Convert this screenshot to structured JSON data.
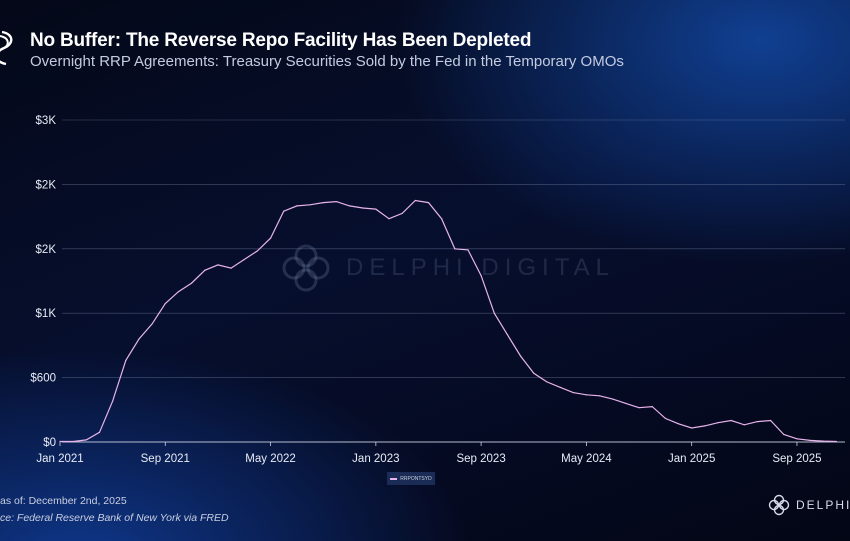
{
  "header": {
    "title": "No Buffer: The Reverse Repo Facility Has Been Depleted",
    "subtitle": "Overnight RRP Agreements: Treasury Securities Sold by the Fed in the Temporary OMOs"
  },
  "footer": {
    "as_of": "as of: December 2nd, 2025",
    "source": "ce: Federal Reserve Bank of New York via FRED",
    "brand": "DELPHI DI",
    "watermark": "DELPHI DIGITAL"
  },
  "colors": {
    "line": "#e7b3ea",
    "grid": "#7f8aa8",
    "text": "#e8ebf5"
  },
  "chart_data": {
    "type": "line",
    "title": "No Buffer: The Reverse Repo Facility Has Been Depleted",
    "subtitle": "Overnight RRP Agreements: Treasury Securities Sold by the Fed in the Temporary OMOs",
    "xlabel": "",
    "ylabel": "",
    "ylim": [
      0,
      3000
    ],
    "grid": true,
    "legend": "bottom-center",
    "y_ticks": [
      {
        "value": 0,
        "label": "$0"
      },
      {
        "value": 600,
        "label": "$600"
      },
      {
        "value": 1200,
        "label": "$1K"
      },
      {
        "value": 1800,
        "label": "$2K"
      },
      {
        "value": 2400,
        "label": "$2K"
      },
      {
        "value": 3000,
        "label": "$3K"
      }
    ],
    "x_ticks": [
      {
        "value": "2021-01",
        "label": "Jan 2021"
      },
      {
        "value": "2021-09",
        "label": "Sep 2021"
      },
      {
        "value": "2022-05",
        "label": "May 2022"
      },
      {
        "value": "2023-01",
        "label": "Jan 2023"
      },
      {
        "value": "2023-09",
        "label": "Sep 2023"
      },
      {
        "value": "2024-05",
        "label": "May 2024"
      },
      {
        "value": "2025-01",
        "label": "Jan 2025"
      },
      {
        "value": "2025-09",
        "label": "Sep 2025"
      }
    ],
    "series": [
      {
        "name": "RRPONTSYD",
        "x": [
          "2021-01",
          "2021-02",
          "2021-03",
          "2021-04",
          "2021-05",
          "2021-06",
          "2021-07",
          "2021-08",
          "2021-09",
          "2021-10",
          "2021-11",
          "2021-12",
          "2022-01",
          "2022-02",
          "2022-03",
          "2022-04",
          "2022-05",
          "2022-06",
          "2022-07",
          "2022-08",
          "2022-09",
          "2022-10",
          "2022-11",
          "2022-12",
          "2023-01",
          "2023-02",
          "2023-03",
          "2023-04",
          "2023-05",
          "2023-06",
          "2023-07",
          "2023-08",
          "2023-09",
          "2023-10",
          "2023-11",
          "2023-12",
          "2024-01",
          "2024-02",
          "2024-03",
          "2024-04",
          "2024-05",
          "2024-06",
          "2024-07",
          "2024-08",
          "2024-09",
          "2024-10",
          "2024-11",
          "2024-12",
          "2025-01",
          "2025-02",
          "2025-03",
          "2025-04",
          "2025-05",
          "2025-06",
          "2025-07",
          "2025-08",
          "2025-09",
          "2025-10",
          "2025-11",
          "2025-12"
        ],
        "values": [
          5,
          5,
          20,
          90,
          380,
          760,
          960,
          1100,
          1290,
          1400,
          1480,
          1600,
          1650,
          1620,
          1700,
          1780,
          1900,
          2150,
          2200,
          2210,
          2230,
          2240,
          2200,
          2180,
          2170,
          2080,
          2130,
          2250,
          2230,
          2080,
          1800,
          1790,
          1550,
          1200,
          1000,
          800,
          640,
          560,
          510,
          460,
          440,
          430,
          400,
          360,
          320,
          330,
          220,
          170,
          130,
          150,
          180,
          200,
          160,
          190,
          200,
          70,
          30,
          15,
          8,
          5
        ]
      }
    ]
  }
}
